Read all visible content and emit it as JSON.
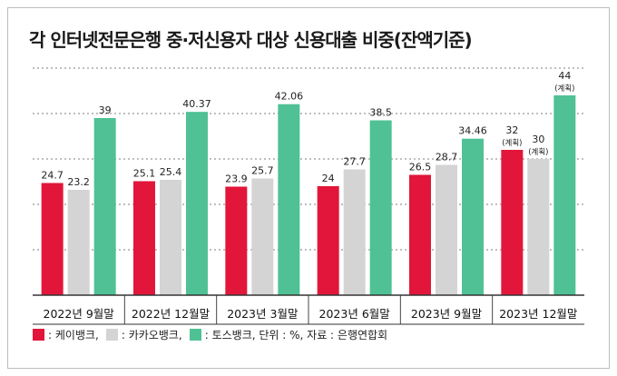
{
  "title": "각 인터넷전문은행 중·저신용자 대상 신용대출 비중(잔액기준)",
  "legend": {
    "items": [
      {
        "label": ": 케이뱅크,",
        "color": "#e2163a"
      },
      {
        "label": ": 카카오뱅크,",
        "color": "#d4d4d4"
      },
      {
        "label": ": 토스뱅크, 단위 : %, 자료 : 은행연합회",
        "color": "#4fc194"
      }
    ]
  },
  "chart_data": {
    "type": "bar",
    "title": "각 인터넷전문은행 중·저신용자 대상 신용대출 비중(잔액기준)",
    "categories": [
      "2022년 9월말",
      "2022년 12월말",
      "2023년 3월말",
      "2023년 6월말",
      "2023년 9월말",
      "2023년 12월말"
    ],
    "series": [
      {
        "name": "케이뱅크",
        "color": "#e2163a",
        "values": [
          24.7,
          25.1,
          23.9,
          24,
          26.5,
          32
        ],
        "labels": [
          "24.7",
          "25.1",
          "23.9",
          "24",
          "26.5",
          "32"
        ]
      },
      {
        "name": "카카오뱅크",
        "color": "#d4d4d4",
        "values": [
          23.2,
          25.4,
          25.7,
          27.7,
          28.7,
          30
        ],
        "labels": [
          "23.2",
          "25.4",
          "25.7",
          "27.7",
          "28.7",
          "30"
        ]
      },
      {
        "name": "토스뱅크",
        "color": "#4fc194",
        "values": [
          39,
          40.37,
          42.06,
          38.5,
          34.46,
          44
        ],
        "labels": [
          "39",
          "40.37",
          "42.06",
          "38.5",
          "34.46",
          "44"
        ]
      }
    ],
    "annotations": [
      {
        "category": "2023년 12월말",
        "series": "케이뱅크",
        "text": "(계획)"
      },
      {
        "category": "2023년 12월말",
        "series": "카카오뱅크",
        "text": "(계획)"
      },
      {
        "category": "2023년 12월말",
        "series": "토스뱅크",
        "text": "(계획)"
      }
    ],
    "ylim": [
      0,
      50
    ],
    "grid": true,
    "legend": "bottom"
  }
}
